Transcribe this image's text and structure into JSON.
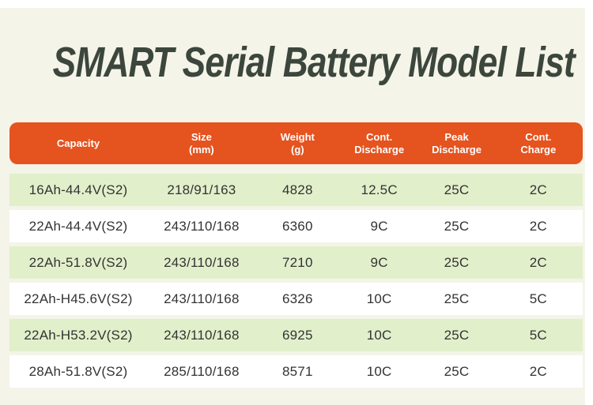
{
  "page": {
    "title": "SMART Serial Battery Model List"
  },
  "colors": {
    "header_bg": "#e5531f",
    "row_green": "#e2efcb",
    "row_white": "#ffffff",
    "panel_cream": "#f4f4e8",
    "title_text": "#3c463c",
    "header_text": "#ffffff",
    "cell_text": "#333333"
  },
  "chart_data": {
    "type": "table",
    "title": "SMART Serial Battery Model List",
    "columns": [
      {
        "line1": "Capacity",
        "line2": ""
      },
      {
        "line1": "Size",
        "line2": "(mm)"
      },
      {
        "line1": "Weight",
        "line2": "(g)"
      },
      {
        "line1": "Cont.",
        "line2": "Discharge"
      },
      {
        "line1": "Peak",
        "line2": "Discharge"
      },
      {
        "line1": "Cont.",
        "line2": "Charge"
      }
    ],
    "rows": [
      [
        "16Ah-44.4V(S2)",
        "218/91/163",
        "4828",
        "12.5C",
        "25C",
        "2C"
      ],
      [
        "22Ah-44.4V(S2)",
        "243/110/168",
        "6360",
        "9C",
        "25C",
        "2C"
      ],
      [
        "22Ah-51.8V(S2)",
        "243/110/168",
        "7210",
        "9C",
        "25C",
        "2C"
      ],
      [
        "22Ah-H45.6V(S2)",
        "243/110/168",
        "6326",
        "10C",
        "25C",
        "5C"
      ],
      [
        "22Ah-H53.2V(S2)",
        "243/110/168",
        "6925",
        "10C",
        "25C",
        "5C"
      ],
      [
        "28Ah-51.8V(S2)",
        "285/110/168",
        "8571",
        "10C",
        "25C",
        "2C"
      ]
    ]
  }
}
